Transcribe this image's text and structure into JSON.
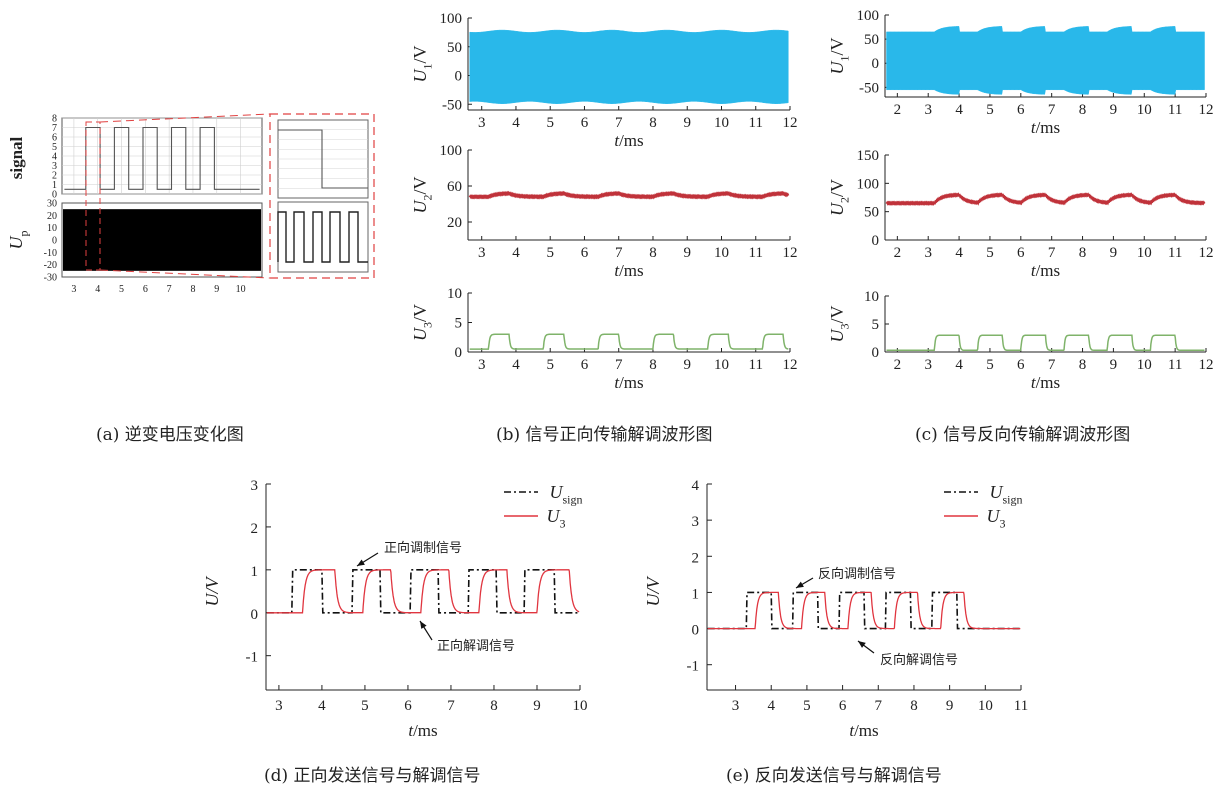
{
  "captions": {
    "a": "(a) 逆变电压变化图",
    "b": "(b) 信号正向传输解调波形图",
    "c": "(c) 信号反向传输解调波形图",
    "d": "(d) 正向发送信号与解调信号",
    "e": "(e) 反向发送信号与解调信号"
  },
  "colors": {
    "u1": "#29b8ea",
    "u2": "#c0323a",
    "u3_small": "#7fb36a",
    "usign": "#111111",
    "u3": "#e0353f",
    "zoom_box": "#e04040",
    "up": "#000000",
    "signal": "#555555"
  },
  "chart_data": [
    {
      "id": "a",
      "type": "line",
      "title": "",
      "xlabel": "",
      "xticks": [
        "3",
        "4",
        "5",
        "6",
        "7",
        "8",
        "9",
        "10"
      ],
      "xlim": [
        2.5,
        10.9
      ],
      "panels": [
        {
          "ylabel": "signal",
          "ylim": [
            0,
            8
          ],
          "yticks": [
            "0",
            "1",
            "2",
            "3",
            "4",
            "5",
            "6",
            "7",
            "8"
          ],
          "high": 7,
          "low": 0.5,
          "pulses": [
            [
              3.5,
              4.1
            ],
            [
              4.7,
              5.3
            ],
            [
              5.9,
              6.5
            ],
            [
              7.1,
              7.7
            ],
            [
              8.3,
              8.9
            ]
          ]
        },
        {
          "ylabel": "U_p",
          "ylim": [
            -30,
            30
          ],
          "yticks": [
            "-30",
            "-20",
            "-10",
            "0",
            "10",
            "20",
            "30"
          ],
          "band": [
            -25,
            25
          ]
        }
      ],
      "zoom_inset": true
    },
    {
      "id": "b",
      "type": "line",
      "title": "",
      "xlabel": "t/ms",
      "xlim": [
        2.6,
        12
      ],
      "xticks": [
        "3",
        "4",
        "5",
        "6",
        "7",
        "8",
        "9",
        "10",
        "11",
        "12"
      ],
      "panels": [
        {
          "ylabel": "U_1/V",
          "ylim": [
            -60,
            100
          ],
          "yticks": [
            "-50",
            "0",
            "50",
            "100"
          ],
          "kind": "band",
          "upper_base": 75,
          "upper_amp": 4,
          "lower_base": -45,
          "lower_amp": 4
        },
        {
          "ylabel": "U_2/V",
          "ylim": [
            0,
            100
          ],
          "yticks": [
            "20",
            "60",
            "100"
          ],
          "kind": "wave",
          "base": 48,
          "high": 52
        },
        {
          "ylabel": "U_3/V",
          "ylim": [
            0,
            10
          ],
          "yticks": [
            "0",
            "5",
            "10"
          ],
          "kind": "square",
          "low": 0.5,
          "high": 3
        }
      ],
      "pulses": [
        [
          3.2,
          3.8
        ],
        [
          4.8,
          5.4
        ],
        [
          6.4,
          7.0
        ],
        [
          8.0,
          8.6
        ],
        [
          9.6,
          10.2
        ],
        [
          11.2,
          11.8
        ]
      ]
    },
    {
      "id": "c",
      "type": "line",
      "title": "",
      "xlabel": "t/ms",
      "xlim": [
        1.6,
        12
      ],
      "xticks": [
        "2",
        "3",
        "4",
        "5",
        "6",
        "7",
        "8",
        "9",
        "10",
        "11",
        "12"
      ],
      "panels": [
        {
          "ylabel": "U_1/V",
          "ylim": [
            -70,
            100
          ],
          "yticks": [
            "-50",
            "0",
            "50",
            "100"
          ],
          "kind": "band",
          "upper_base": 65,
          "upper_amp": 12,
          "lower_base": -55,
          "lower_amp": 10
        },
        {
          "ylabel": "U_2/V",
          "ylim": [
            0,
            150
          ],
          "yticks": [
            "0",
            "50",
            "100",
            "150"
          ],
          "kind": "wave",
          "base": 65,
          "high": 80
        },
        {
          "ylabel": "U_3/V",
          "ylim": [
            0,
            10
          ],
          "yticks": [
            "0",
            "5",
            "10"
          ],
          "kind": "square",
          "low": 0.3,
          "high": 3
        }
      ],
      "pulses": [
        [
          3.2,
          4.0
        ],
        [
          4.6,
          5.4
        ],
        [
          6.0,
          6.8
        ],
        [
          7.4,
          8.2
        ],
        [
          8.8,
          9.6
        ],
        [
          10.2,
          11.0
        ]
      ]
    },
    {
      "id": "d",
      "type": "line",
      "title": "",
      "xlabel": "t/ms",
      "ylabel": "U/V",
      "xlim": [
        2.7,
        10
      ],
      "ylim": [
        -1.8,
        3
      ],
      "xticks": [
        "3",
        "4",
        "5",
        "6",
        "7",
        "8",
        "9",
        "10"
      ],
      "yticks": [
        "-1",
        "0",
        "1",
        "2",
        "3"
      ],
      "legend_position": "top-right",
      "series": [
        {
          "name": "U_sign",
          "style": "dashdot",
          "pulses": [
            [
              3.3,
              4.0
            ],
            [
              4.7,
              5.35
            ],
            [
              6.05,
              6.7
            ],
            [
              7.4,
              8.05
            ],
            [
              8.7,
              9.4
            ]
          ]
        },
        {
          "name": "U_3",
          "style": "solid",
          "pulses": [
            [
              3.55,
              4.3
            ],
            [
              4.95,
              5.6
            ],
            [
              6.3,
              6.95
            ],
            [
              7.65,
              8.3
            ],
            [
              9.0,
              9.75
            ]
          ]
        }
      ],
      "annotations": [
        {
          "text": "正向调制信号"
        },
        {
          "text": "正向解调信号"
        }
      ]
    },
    {
      "id": "e",
      "type": "line",
      "title": "",
      "xlabel": "t/ms",
      "ylabel": "U/V",
      "xlim": [
        2.2,
        11
      ],
      "ylim": [
        -1.7,
        4
      ],
      "xticks": [
        "3",
        "4",
        "5",
        "6",
        "7",
        "8",
        "9",
        "10",
        "11"
      ],
      "yticks": [
        "-1",
        "0",
        "1",
        "2",
        "3",
        "4"
      ],
      "legend_position": "top-right",
      "series": [
        {
          "name": "U_sign",
          "style": "dashdot",
          "pulses": [
            [
              3.3,
              4.0
            ],
            [
              4.6,
              5.3
            ],
            [
              5.9,
              6.6
            ],
            [
              7.2,
              7.9
            ],
            [
              8.5,
              9.2
            ]
          ]
        },
        {
          "name": "U_3",
          "style": "solid",
          "pulses": [
            [
              3.55,
              4.2
            ],
            [
              4.85,
              5.5
            ],
            [
              6.15,
              6.8
            ],
            [
              7.45,
              8.1
            ],
            [
              8.75,
              9.4
            ]
          ]
        }
      ],
      "annotations": [
        {
          "text": "反向调制信号"
        },
        {
          "text": "反向解调信号"
        }
      ]
    }
  ]
}
